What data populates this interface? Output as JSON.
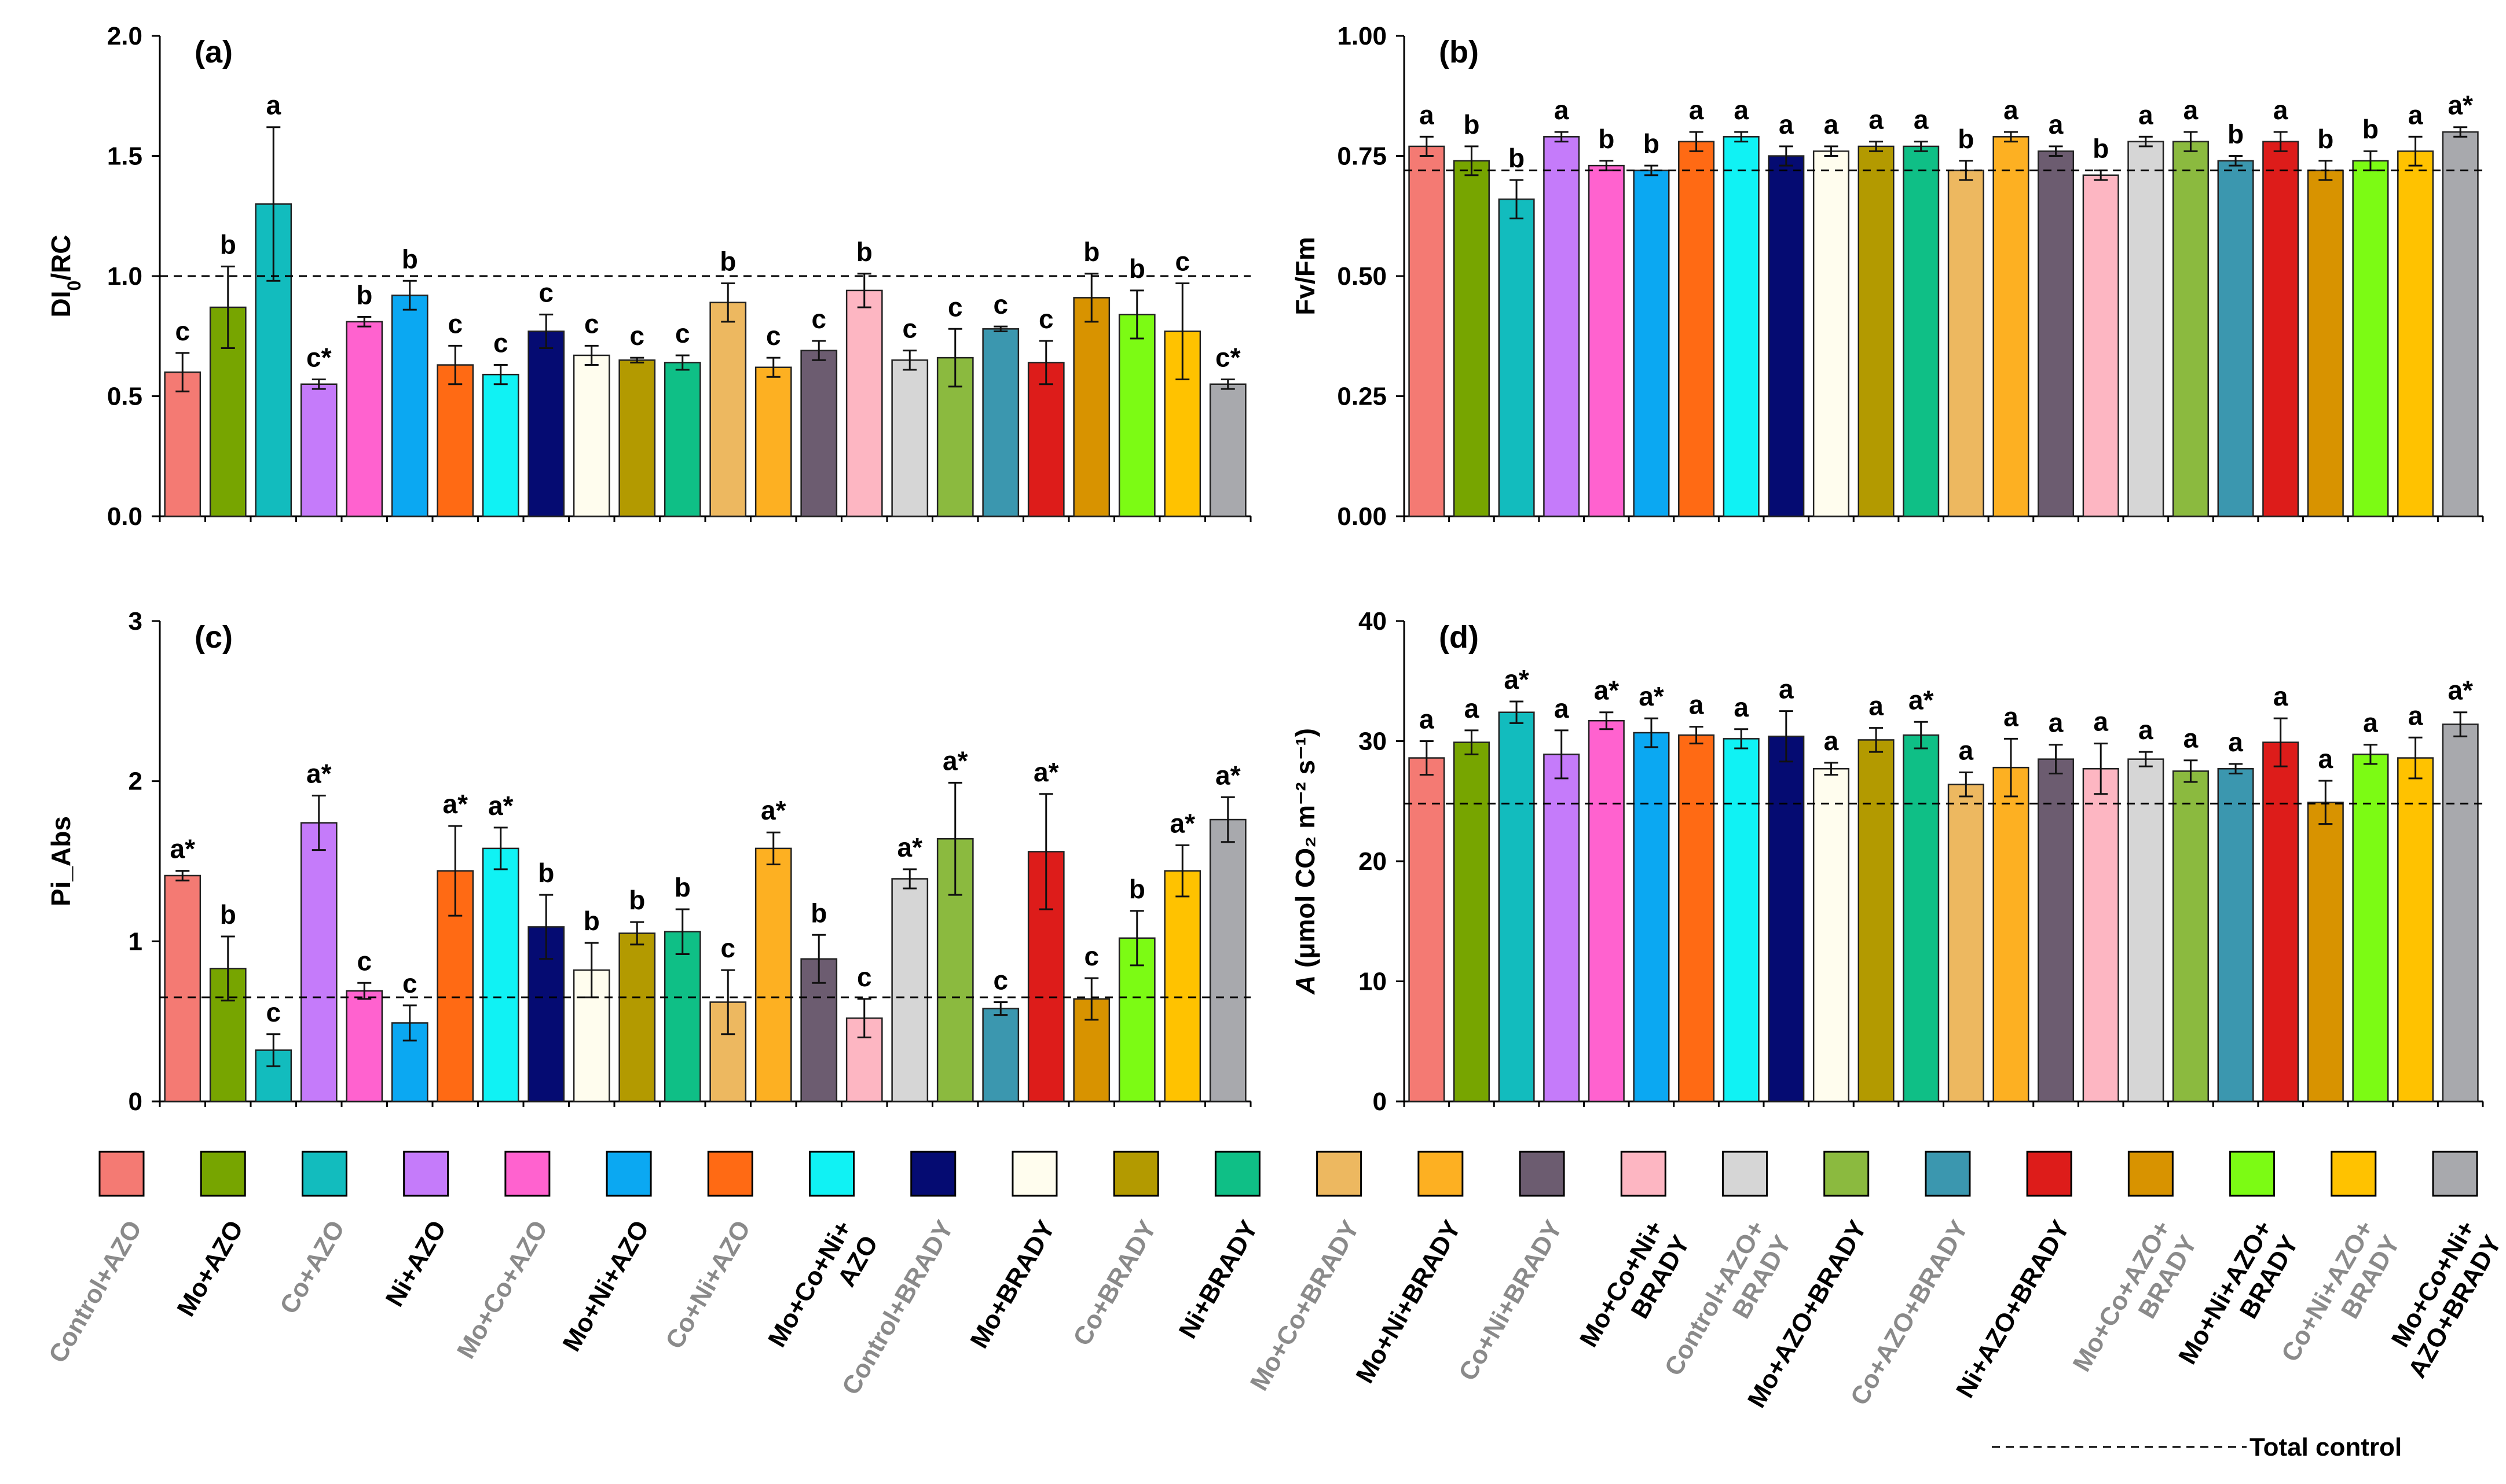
{
  "categories": [
    {
      "label": [
        "Control+AZO"
      ],
      "color": "#F47A73",
      "grey": true
    },
    {
      "label": [
        "Mo+AZO"
      ],
      "color": "#77A500",
      "grey": false
    },
    {
      "label": [
        "Co+AZO"
      ],
      "color": "#12BCBE",
      "grey": true
    },
    {
      "label": [
        "Ni+AZO"
      ],
      "color": "#C57BFA",
      "grey": false
    },
    {
      "label": [
        "Mo+Co+AZO"
      ],
      "color": "#FF62CF",
      "grey": true
    },
    {
      "label": [
        "Mo+Ni+AZO"
      ],
      "color": "#0BA8F2",
      "grey": false
    },
    {
      "label": [
        "Co+Ni+AZO"
      ],
      "color": "#FF6A14",
      "grey": true
    },
    {
      "label": [
        "Mo+Co+Ni+",
        "AZO"
      ],
      "color": "#10F2F4",
      "grey": false
    },
    {
      "label": [
        "Control+BRADY"
      ],
      "color": "#050B72",
      "grey": true
    },
    {
      "label": [
        "Mo+BRADY"
      ],
      "color": "#FFFDEE",
      "grey": false
    },
    {
      "label": [
        "Co+BRADY"
      ],
      "color": "#B39A00",
      "grey": true
    },
    {
      "label": [
        "Ni+BRADY"
      ],
      "color": "#0FBF86",
      "grey": false
    },
    {
      "label": [
        "Mo+Co+BRADY"
      ],
      "color": "#EDB860",
      "grey": true
    },
    {
      "label": [
        "Mo+Ni+BRADY"
      ],
      "color": "#FDB022",
      "grey": false
    },
    {
      "label": [
        "Co+Ni+BRADY"
      ],
      "color": "#6C5C70",
      "grey": true
    },
    {
      "label": [
        "Mo+Co+Ni+",
        "BRADY"
      ],
      "color": "#FDB6C2",
      "grey": false
    },
    {
      "label": [
        "Control+AZO+",
        "BRADY"
      ],
      "color": "#D6D6D6",
      "grey": true
    },
    {
      "label": [
        "Mo+AZO+BRADY"
      ],
      "color": "#8BBA3F",
      "grey": false
    },
    {
      "label": [
        "Co+AZO+BRADY"
      ],
      "color": "#3B97AF",
      "grey": true
    },
    {
      "label": [
        "Ni+AZO+BRADY"
      ],
      "color": "#DD1C1A",
      "grey": false
    },
    {
      "label": [
        "Mo+Co+AZO+",
        "BRADY"
      ],
      "color": "#D89300",
      "grey": true
    },
    {
      "label": [
        "Mo+Ni+AZO+",
        "BRADY"
      ],
      "color": "#7CFB14",
      "grey": false
    },
    {
      "label": [
        "Co+Ni+AZO+",
        "BRADY"
      ],
      "color": "#FFC200",
      "grey": true
    },
    {
      "label": [
        "Mo+Co+Ni+",
        "AZO+BRADY"
      ],
      "color": "#A8A9AD",
      "grey": false
    }
  ],
  "legend": {
    "total_control": "Total control"
  },
  "chart_data": [
    {
      "type": "bar",
      "panel": "(a)",
      "ylabel": "DI",
      "ylabel_sub": "0",
      "ylabel_tail": "/RC",
      "ylim": [
        0,
        2.0
      ],
      "yticks": [
        "0.0",
        "0.5",
        "1.0",
        "1.5",
        "2.0"
      ],
      "reference_total_control": 1.0,
      "values": [
        0.6,
        0.87,
        1.3,
        0.55,
        0.81,
        0.92,
        0.63,
        0.59,
        0.77,
        0.67,
        0.65,
        0.64,
        0.89,
        0.62,
        0.69,
        0.94,
        0.65,
        0.66,
        0.78,
        0.64,
        0.91,
        0.84,
        0.77,
        0.55
      ],
      "errors": [
        0.08,
        0.17,
        0.32,
        0.02,
        0.02,
        0.06,
        0.08,
        0.04,
        0.07,
        0.04,
        0.01,
        0.03,
        0.08,
        0.04,
        0.04,
        0.07,
        0.04,
        0.12,
        0.01,
        0.09,
        0.1,
        0.1,
        0.2,
        0.02
      ],
      "letters": [
        "c",
        "b",
        "a",
        "c*",
        "b",
        "b",
        "c",
        "c",
        "c",
        "c",
        "c",
        "c",
        "b",
        "c",
        "c",
        "b",
        "c",
        "c",
        "c",
        "c",
        "b",
        "b",
        "c",
        "c*"
      ]
    },
    {
      "type": "bar",
      "panel": "(b)",
      "ylabel": "Fv/Fm",
      "ylabel_sub": "",
      "ylabel_tail": "",
      "ylim": [
        0,
        1.0
      ],
      "yticks": [
        "0.00",
        "0.25",
        "0.50",
        "0.75",
        "1.00"
      ],
      "reference_total_control": 0.72,
      "values": [
        0.77,
        0.74,
        0.66,
        0.79,
        0.73,
        0.72,
        0.78,
        0.79,
        0.75,
        0.76,
        0.77,
        0.77,
        0.72,
        0.79,
        0.76,
        0.71,
        0.78,
        0.78,
        0.74,
        0.78,
        0.72,
        0.74,
        0.76,
        0.8
      ],
      "errors": [
        0.02,
        0.03,
        0.04,
        0.01,
        0.01,
        0.01,
        0.02,
        0.01,
        0.02,
        0.01,
        0.01,
        0.01,
        0.02,
        0.01,
        0.01,
        0.01,
        0.01,
        0.02,
        0.01,
        0.02,
        0.02,
        0.02,
        0.03,
        0.01
      ],
      "letters": [
        "a",
        "b",
        "b",
        "a",
        "b",
        "b",
        "a",
        "a",
        "a",
        "a",
        "a",
        "a",
        "b",
        "a",
        "a",
        "b",
        "a",
        "a",
        "b",
        "a",
        "b",
        "b",
        "a",
        "a*"
      ]
    },
    {
      "type": "bar",
      "panel": "(c)",
      "ylabel": "Pi_Abs",
      "ylabel_sub": "",
      "ylabel_tail": "",
      "ylim": [
        0,
        3
      ],
      "yticks": [
        "0",
        "1",
        "2",
        "3"
      ],
      "reference_total_control": 0.65,
      "values": [
        1.41,
        0.83,
        0.32,
        1.74,
        0.69,
        0.49,
        1.44,
        1.58,
        1.09,
        0.82,
        1.05,
        1.06,
        0.62,
        1.58,
        0.89,
        0.52,
        1.39,
        1.64,
        0.58,
        1.56,
        0.64,
        1.02,
        1.44,
        1.76
      ],
      "errors": [
        0.03,
        0.2,
        0.1,
        0.17,
        0.05,
        0.11,
        0.28,
        0.13,
        0.2,
        0.17,
        0.07,
        0.14,
        0.2,
        0.1,
        0.15,
        0.12,
        0.06,
        0.35,
        0.04,
        0.36,
        0.13,
        0.17,
        0.16,
        0.14
      ],
      "letters": [
        "a*",
        "b",
        "c",
        "a*",
        "c",
        "c",
        "a*",
        "a*",
        "b",
        "b",
        "b",
        "b",
        "c",
        "a*",
        "b",
        "c",
        "a*",
        "a*",
        "c",
        "a*",
        "c",
        "b",
        "a*",
        "a*"
      ]
    },
    {
      "type": "bar",
      "panel": "(d)",
      "ylabel": "A",
      "ylabel_sub": "",
      "ylabel_tail": " (μmol CO₂ m⁻² s⁻¹)",
      "ylim": [
        0,
        40
      ],
      "yticks": [
        "0",
        "10",
        "20",
        "30",
        "40"
      ],
      "reference_total_control": 24.8,
      "values": [
        28.6,
        29.9,
        32.4,
        28.9,
        31.7,
        30.7,
        30.5,
        30.2,
        30.4,
        27.7,
        30.1,
        30.5,
        26.4,
        27.8,
        28.5,
        27.7,
        28.5,
        27.5,
        27.7,
        29.9,
        24.9,
        28.9,
        28.6,
        31.4
      ],
      "errors": [
        1.4,
        1.0,
        0.9,
        2.0,
        0.7,
        1.2,
        0.7,
        0.8,
        2.1,
        0.5,
        1.0,
        1.1,
        1.0,
        2.4,
        1.2,
        2.1,
        0.6,
        0.9,
        0.4,
        2.0,
        1.8,
        0.8,
        1.7,
        1.0
      ],
      "letters": [
        "a",
        "a",
        "a*",
        "a",
        "a*",
        "a*",
        "a",
        "a",
        "a",
        "a",
        "a",
        "a*",
        "a",
        "a",
        "a",
        "a",
        "a",
        "a",
        "a",
        "a",
        "a",
        "a",
        "a",
        "a*"
      ]
    }
  ]
}
